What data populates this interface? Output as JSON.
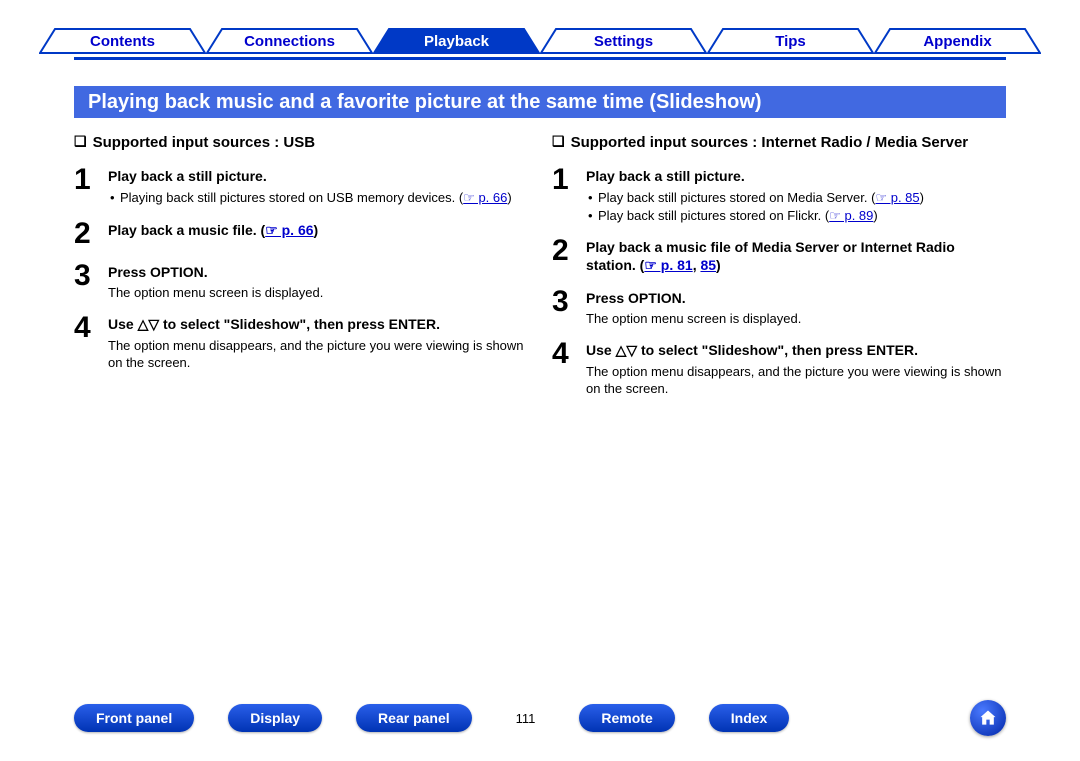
{
  "colors": {
    "blue_rule": "#0039c6",
    "section_bar": "#4169e1",
    "link": "#0000cc",
    "pill_top": "#2a5fea",
    "pill_bottom": "#0033b3",
    "tab_active_fill": "#0039c6",
    "tab_inactive_stroke": "#0039c6"
  },
  "tabs": [
    {
      "label": "Contents",
      "active": false
    },
    {
      "label": "Connections",
      "active": false
    },
    {
      "label": "Playback",
      "active": true
    },
    {
      "label": "Settings",
      "active": false
    },
    {
      "label": "Tips",
      "active": false
    },
    {
      "label": "Appendix",
      "active": false
    }
  ],
  "section_title": "Playing back music and a favorite picture at the same time (Slideshow)",
  "left": {
    "heading_prefix": "❏",
    "heading": "Supported input sources : USB",
    "steps": [
      {
        "num": "1",
        "title": "Play back a still picture.",
        "bullets": [
          {
            "text": "Playing back still pictures stored on USB memory devices.   (",
            "ref": "☞ p. 66",
            "after": ")"
          }
        ]
      },
      {
        "num": "2",
        "title_parts": {
          "before": "Play back a music file.   (",
          "ref": "☞ p. 66",
          "after": ")"
        }
      },
      {
        "num": "3",
        "title": "Press OPTION.",
        "desc": "The option menu screen is displayed."
      },
      {
        "num": "4",
        "title": "Use △▽ to select \"Slideshow\", then press ENTER.",
        "desc": "The option menu disappears, and the picture you were viewing is shown on the screen."
      }
    ]
  },
  "right": {
    "heading_prefix": "❏",
    "heading": "Supported input sources : Internet Radio / Media Server",
    "steps": [
      {
        "num": "1",
        "title": "Play back a still picture.",
        "bullets": [
          {
            "text": "Play back still pictures stored on Media Server.   (",
            "ref": "☞ p. 85",
            "after": ")"
          },
          {
            "text": "Play back still pictures stored on Flickr.   (",
            "ref": "☞ p. 89",
            "after": ")"
          }
        ]
      },
      {
        "num": "2",
        "title_parts": {
          "before": "Play back a music file of Media Server or Internet Radio station.   (",
          "ref": "☞ p. 81",
          "mid": ",  ",
          "ref2": "85",
          "after": ")"
        }
      },
      {
        "num": "3",
        "title": "Press OPTION.",
        "desc": "The option menu screen is displayed."
      },
      {
        "num": "4",
        "title": "Use △▽ to select \"Slideshow\", then press ENTER.",
        "desc": "The option menu disappears, and the picture you were viewing is shown on the screen."
      }
    ]
  },
  "bottom": {
    "buttons": [
      "Front panel",
      "Display",
      "Rear panel"
    ],
    "page_number": "111",
    "buttons2": [
      "Remote",
      "Index"
    ]
  }
}
